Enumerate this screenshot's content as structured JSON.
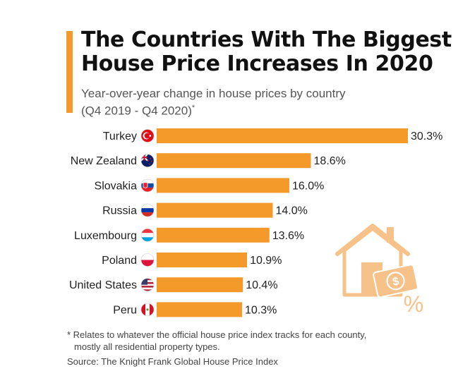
{
  "title_line1": "The Countries With The Biggest",
  "title_line2": "House Price Increases In 2020",
  "subtitle_line1": "Year-over-year change in house prices by country",
  "subtitle_line2": "(Q4 2019 - Q4 2020)",
  "subtitle_mark": "*",
  "footnote_line1": "* Relates to whatever the official house price index tracks for each county,",
  "footnote_line2": "mostly all residential property types.",
  "source": "Source: The Knight Frank Global House Price Index",
  "colors": {
    "bar": "#F39A2B",
    "accent": "#F39A2B",
    "illustration": "#F7C28A"
  },
  "chart_data": {
    "type": "bar",
    "orientation": "horizontal",
    "categories": [
      "Turkey",
      "New Zealand",
      "Slovakia",
      "Russia",
      "Luxembourg",
      "Poland",
      "United States",
      "Peru"
    ],
    "values": [
      30.3,
      18.6,
      16.0,
      14.0,
      13.6,
      10.9,
      10.4,
      10.3
    ],
    "value_labels": [
      "30.3%",
      "18.6%",
      "16.0%",
      "14.0%",
      "13.6%",
      "10.9%",
      "10.4%",
      "10.3%"
    ],
    "unit": "%",
    "flag_icons": [
      "turkey-flag-icon",
      "new-zealand-flag-icon",
      "slovakia-flag-icon",
      "russia-flag-icon",
      "luxembourg-flag-icon",
      "poland-flag-icon",
      "united-states-flag-icon",
      "peru-flag-icon"
    ],
    "xlim": [
      0,
      30.3
    ],
    "grid": false,
    "legend": "none"
  }
}
